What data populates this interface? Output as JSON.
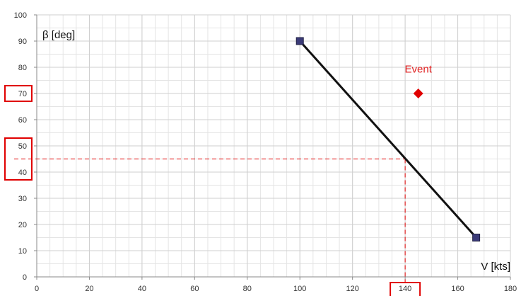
{
  "chart_data": {
    "type": "scatter",
    "title": "",
    "xlabel": "V [kts]",
    "ylabel": "β [deg]",
    "xlim": [
      0,
      180
    ],
    "ylim": [
      0,
      100
    ],
    "x_ticks": [
      0,
      20,
      40,
      60,
      80,
      100,
      120,
      140,
      160,
      180
    ],
    "y_ticks": [
      0,
      10,
      20,
      30,
      40,
      50,
      60,
      70,
      80,
      90,
      100
    ],
    "x_minor_step": 5,
    "y_minor_step": 5,
    "grid": true,
    "series": [
      {
        "points": [
          [
            100,
            90
          ],
          [
            167,
            15
          ]
        ],
        "line_color": "#111111",
        "marker": "square",
        "marker_color": "#3b3b78"
      },
      {
        "points": [
          [
            145,
            70
          ]
        ],
        "marker": "diamond",
        "marker_color": "#e00000"
      }
    ],
    "annotations": [
      {
        "text": "Event",
        "x": 145,
        "y": 78,
        "color": "#e02020"
      }
    ],
    "reference_lines": {
      "point": [
        140,
        45
      ],
      "color": "#e00000",
      "dashed": true
    },
    "highlight_boxes": [
      {
        "tick_axis": "y",
        "values": [
          70
        ],
        "color": "#e00000"
      },
      {
        "tick_axis": "y",
        "values": [
          40,
          50
        ],
        "color": "#e00000"
      },
      {
        "tick_axis": "x",
        "values": [
          140
        ],
        "color": "#e00000"
      }
    ]
  }
}
